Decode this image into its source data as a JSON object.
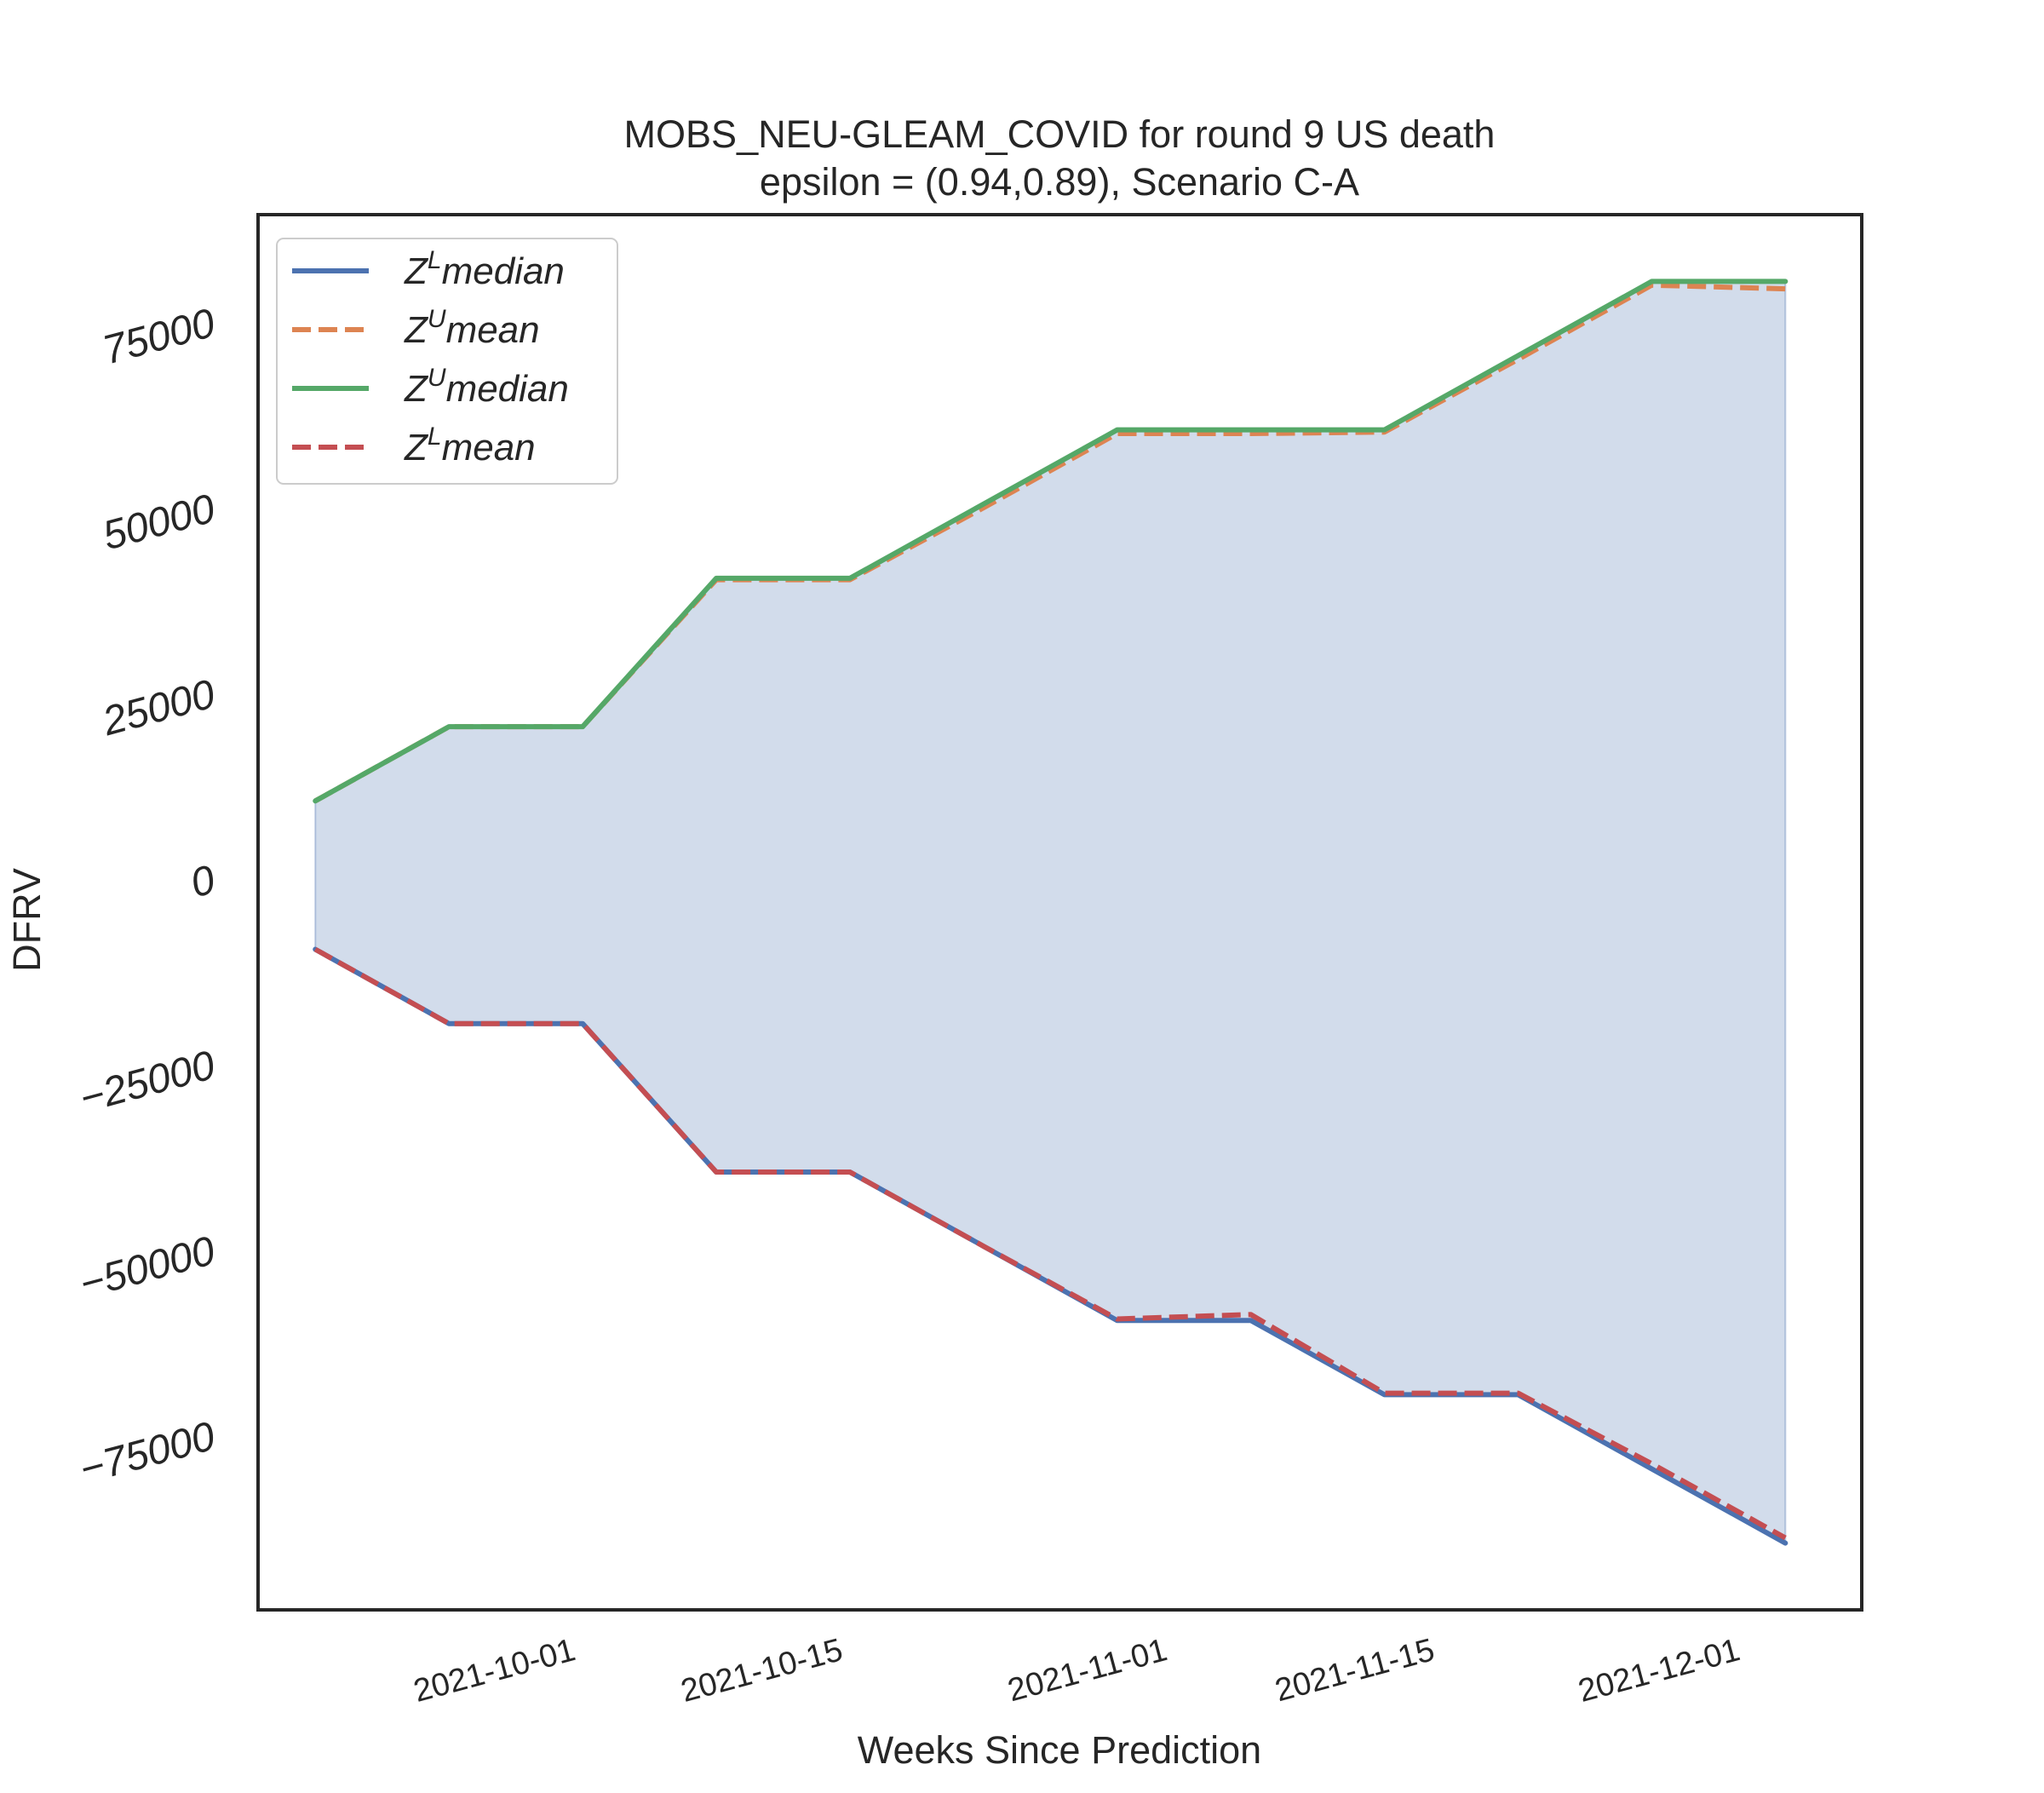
{
  "chart_data": {
    "type": "line",
    "title": "MOBS_NEU-GLEAM_COVID for round 9 US  death",
    "subtitle": "epsilon = (0.94,0.89), Scenario C-A",
    "xlabel": "Weeks Since Prediction",
    "ylabel": "DFRV",
    "x_dates": [
      "2021-09-18",
      "2021-09-25",
      "2021-10-02",
      "2021-10-09",
      "2021-10-16",
      "2021-10-23",
      "2021-10-30",
      "2021-11-06",
      "2021-11-13",
      "2021-11-20",
      "2021-11-27",
      "2021-12-04"
    ],
    "xlim": [
      "2021-09-15",
      "2021-12-08"
    ],
    "ylim": [
      -98500,
      89500
    ],
    "x_ticks": [
      "2021-10-01",
      "2021-10-15",
      "2021-11-01",
      "2021-11-15",
      "2021-12-01"
    ],
    "x_tick_labels": [
      "2021-10-01",
      "2021-10-15",
      "2021-11-01",
      "2021-11-15",
      "2021-12-01"
    ],
    "y_ticks": [
      -75000,
      -50000,
      -25000,
      0,
      25000,
      50000,
      75000
    ],
    "y_tick_labels": [
      "−75000",
      "−50000",
      "−25000",
      "0",
      "25000",
      "50000",
      "75000"
    ],
    "grid": false,
    "legend_position": "top-left",
    "fill_between": {
      "lower": "Z^L median",
      "upper": "Z^U median",
      "color": "#4c72b0",
      "alpha": 0.25
    },
    "series": [
      {
        "name": "Z^L median",
        "legend_base": "Z",
        "legend_sup": "L",
        "legend_rest": "median",
        "color": "#4c72b0",
        "style": "solid",
        "values": [
          -9500,
          -19500,
          -19500,
          -39500,
          -39500,
          -49500,
          -59500,
          -59500,
          -69500,
          -69500,
          -79500,
          -89500
        ]
      },
      {
        "name": "Z^U mean",
        "legend_base": "Z",
        "legend_sup": "U",
        "legend_rest": "mean",
        "color": "#dd8452",
        "style": "dashed",
        "values": [
          10500,
          20500,
          20500,
          40300,
          40300,
          50000,
          60000,
          60000,
          60200,
          70000,
          80000,
          79500
        ]
      },
      {
        "name": "Z^U median",
        "legend_base": "Z",
        "legend_sup": "U",
        "legend_rest": "median",
        "color": "#55a868",
        "style": "solid",
        "values": [
          10500,
          20500,
          20500,
          40500,
          40500,
          50500,
          60500,
          60500,
          60500,
          70500,
          80500,
          80500
        ]
      },
      {
        "name": "Z^L mean",
        "legend_base": "Z",
        "legend_sup": "L",
        "legend_rest": "mean",
        "color": "#c44e52",
        "style": "dashed",
        "values": [
          -9500,
          -19500,
          -19500,
          -39500,
          -39500,
          -49500,
          -59300,
          -58700,
          -69300,
          -69300,
          -78800,
          -88800
        ]
      }
    ]
  }
}
